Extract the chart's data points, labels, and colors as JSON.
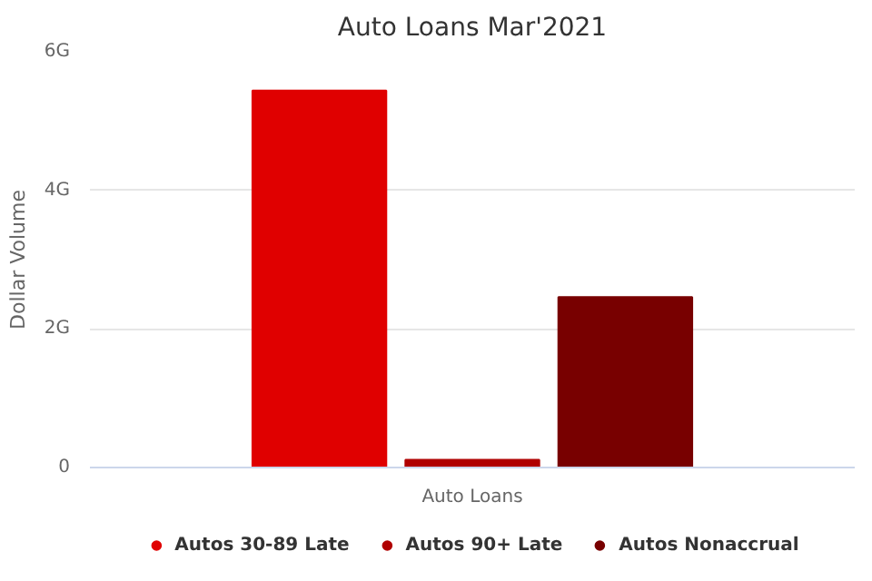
{
  "chart_data": {
    "type": "bar",
    "title": "Auto Loans Mar'2021",
    "ylabel": "Dollar Volume",
    "categories": [
      "Auto Loans"
    ],
    "series": [
      {
        "name": "Autos 30-89 Late",
        "color": "#e00000",
        "values": [
          5.44
        ]
      },
      {
        "name": "Autos 90+ Late",
        "color": "#b00000",
        "values": [
          0.11
        ]
      },
      {
        "name": "Autos Nonaccrual",
        "color": "#780000",
        "values": [
          2.46
        ]
      }
    ],
    "ylim": [
      0,
      6
    ],
    "yticks": [
      0,
      {
        "value": 2,
        "label": "2G"
      },
      {
        "value": 4,
        "label": "4G"
      },
      {
        "value": 6,
        "label": "6G"
      }
    ],
    "grid": "y",
    "legend": "bottom"
  }
}
